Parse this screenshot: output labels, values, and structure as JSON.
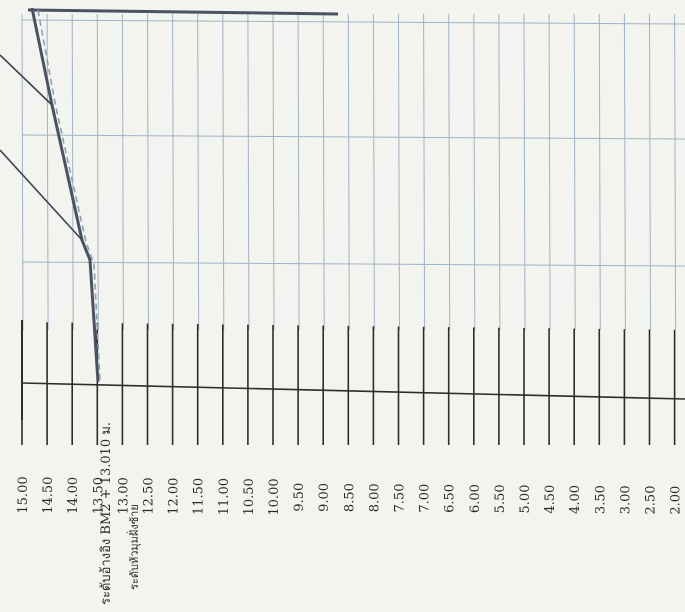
{
  "profile": {
    "elevation_labels": [
      "15.00",
      "14.50",
      "14.00",
      "13.50",
      "13.00",
      "12.50",
      "12.00",
      "11.50",
      "11.00",
      "10.50",
      "10.00",
      "9.50",
      "9.00",
      "8.50",
      "8.00",
      "7.50",
      "7.00",
      "6.50",
      "6.00",
      "5.50",
      "5.00",
      "4.50",
      "4.00",
      "3.50",
      "3.00",
      "2.50",
      "2.00"
    ],
    "benchmark_label": "ระดับอ้างอิง BM2 + 13.010 ม.",
    "datum_label": "ระดับหัวมุมฝั่งซ้าย"
  },
  "colors": {
    "paper": "#f3f3ef",
    "grid_light": "#9fb3c4",
    "grid_dark": "#2c2c2c",
    "profile_line": "#4a5160",
    "dashed_line": "#8aa0b4",
    "text": "#2a2a2a"
  }
}
